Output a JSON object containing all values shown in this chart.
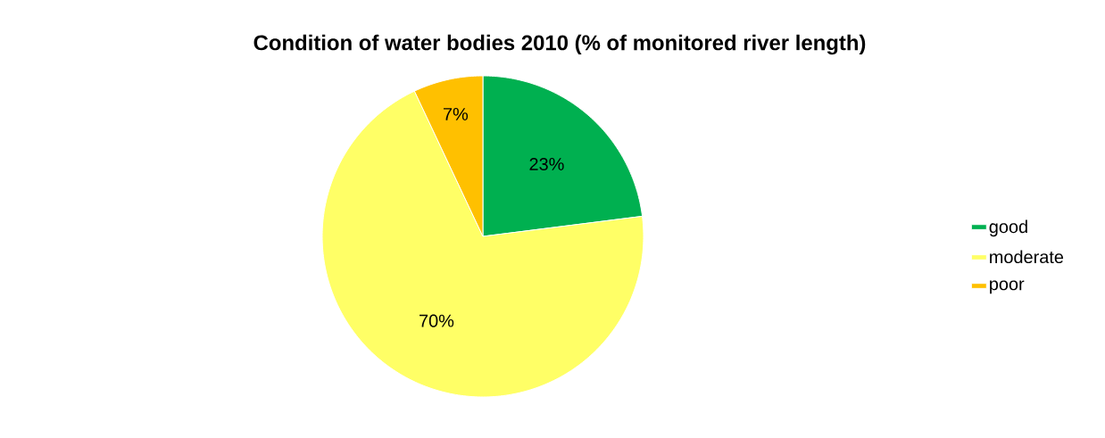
{
  "chart_data": {
    "type": "pie",
    "title": "Condition of water bodies  2010 (% of monitored river length)",
    "categories": [
      "good",
      "moderate",
      "poor"
    ],
    "values": [
      23,
      70,
      7
    ],
    "colors": [
      "#00b050",
      "#ffff66",
      "#ffc000"
    ],
    "value_labels": [
      "23%",
      "70%",
      "7%"
    ],
    "legend": "right"
  }
}
